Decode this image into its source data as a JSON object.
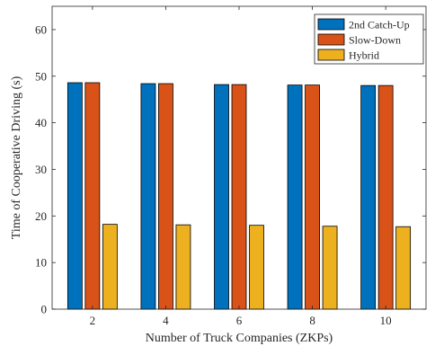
{
  "chart_data": {
    "type": "bar",
    "xlabel": "Number of Truck Companies (ZKPs)",
    "ylabel": "Time of Cooperative Driving (s)",
    "categories": [
      "2",
      "4",
      "6",
      "8",
      "10"
    ],
    "ylim": [
      0,
      65
    ],
    "yticks": [
      0,
      10,
      20,
      30,
      40,
      50,
      60
    ],
    "grid": false,
    "legend_position": "top-right",
    "series": [
      {
        "name": "2nd Catch-Up",
        "color": "#0072BD",
        "values": [
          48.6,
          48.4,
          48.2,
          48.1,
          48.0
        ]
      },
      {
        "name": "Slow-Down",
        "color": "#D95319",
        "values": [
          48.6,
          48.4,
          48.2,
          48.1,
          48.0
        ]
      },
      {
        "name": "Hybrid",
        "color": "#EDB120",
        "values": [
          18.2,
          18.1,
          18.0,
          17.8,
          17.7
        ]
      }
    ]
  }
}
